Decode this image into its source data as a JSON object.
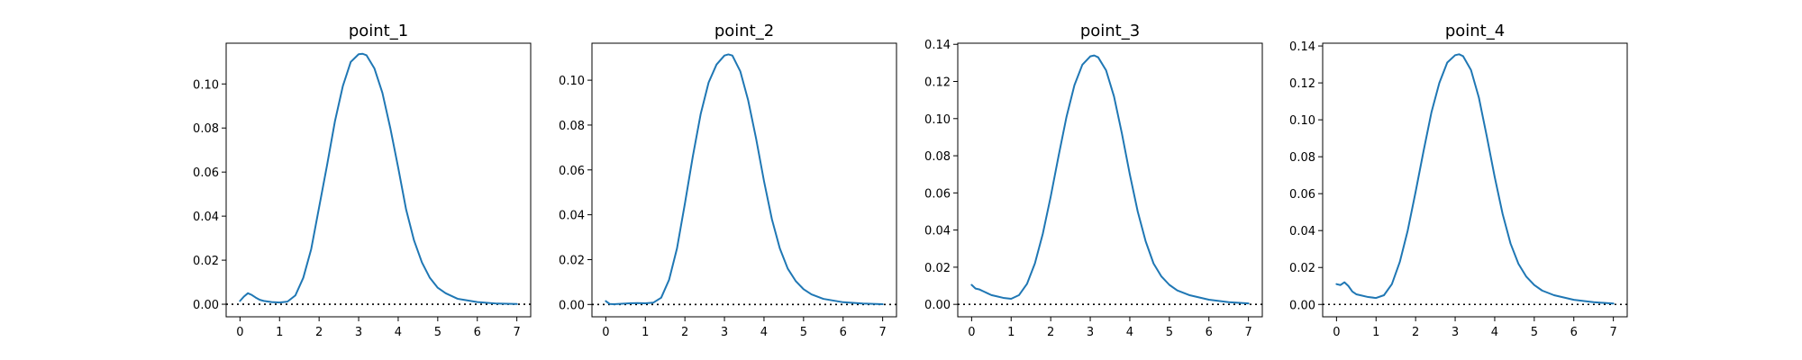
{
  "colors": {
    "series": "#1f77b4",
    "axes": "#000000",
    "background": "#ffffff"
  },
  "chart_data": [
    {
      "type": "line",
      "title": "point_1",
      "xlabel": "",
      "ylabel": "",
      "xlim": [
        -0.35,
        7.35
      ],
      "ylim": [
        -0.0057,
        0.1185
      ],
      "xticks": [
        0,
        1,
        2,
        3,
        4,
        5,
        6,
        7
      ],
      "yticks": [
        0.0,
        0.02,
        0.04,
        0.06,
        0.08,
        0.1
      ],
      "ytick_labels": [
        "0.00",
        "0.02",
        "0.04",
        "0.06",
        "0.08",
        "0.10"
      ],
      "reference_line": {
        "y": 0,
        "style": "dotted"
      },
      "grid": false,
      "legend": "none",
      "series": [
        {
          "x": [
            0.0,
            0.1,
            0.2,
            0.3,
            0.4,
            0.5,
            0.6,
            0.8,
            1.0,
            1.2,
            1.4,
            1.6,
            1.8,
            2.0,
            2.2,
            2.4,
            2.6,
            2.8,
            3.0,
            3.1,
            3.2,
            3.4,
            3.6,
            3.8,
            4.0,
            4.2,
            4.4,
            4.6,
            4.8,
            5.0,
            5.2,
            5.5,
            6.0,
            6.5,
            7.0
          ],
          "y": [
            0.0015,
            0.0035,
            0.005,
            0.0042,
            0.003,
            0.002,
            0.0015,
            0.001,
            0.0008,
            0.0012,
            0.004,
            0.012,
            0.025,
            0.044,
            0.063,
            0.083,
            0.099,
            0.11,
            0.1135,
            0.1137,
            0.113,
            0.107,
            0.096,
            0.08,
            0.062,
            0.043,
            0.029,
            0.019,
            0.012,
            0.0075,
            0.005,
            0.0025,
            0.001,
            0.0003,
            0.0001
          ]
        }
      ]
    },
    {
      "type": "line",
      "title": "point_2",
      "xlabel": "",
      "ylabel": "",
      "xlim": [
        -0.35,
        7.35
      ],
      "ylim": [
        -0.0055,
        0.1165
      ],
      "xticks": [
        0,
        1,
        2,
        3,
        4,
        5,
        6,
        7
      ],
      "yticks": [
        0.0,
        0.02,
        0.04,
        0.06,
        0.08,
        0.1
      ],
      "ytick_labels": [
        "0.00",
        "0.02",
        "0.04",
        "0.06",
        "0.08",
        "0.10"
      ],
      "reference_line": {
        "y": 0,
        "style": "dotted"
      },
      "grid": false,
      "legend": "none",
      "series": [
        {
          "x": [
            0.0,
            0.1,
            0.2,
            0.4,
            0.6,
            0.8,
            1.0,
            1.2,
            1.4,
            1.6,
            1.8,
            2.0,
            2.2,
            2.4,
            2.6,
            2.8,
            3.0,
            3.1,
            3.2,
            3.4,
            3.6,
            3.8,
            4.0,
            4.2,
            4.4,
            4.6,
            4.8,
            5.0,
            5.2,
            5.5,
            6.0,
            6.5,
            7.0
          ],
          "y": [
            0.0015,
            0.0002,
            0.0001,
            0.0003,
            0.0005,
            0.0006,
            0.0005,
            0.0008,
            0.003,
            0.011,
            0.025,
            0.045,
            0.066,
            0.085,
            0.099,
            0.107,
            0.111,
            0.1115,
            0.111,
            0.104,
            0.091,
            0.074,
            0.055,
            0.038,
            0.025,
            0.016,
            0.0105,
            0.0068,
            0.0045,
            0.0025,
            0.001,
            0.0004,
            0.0001
          ]
        }
      ]
    },
    {
      "type": "line",
      "title": "point_3",
      "xlabel": "",
      "ylabel": "",
      "xlim": [
        -0.35,
        7.35
      ],
      "ylim": [
        -0.0067,
        0.1406
      ],
      "xticks": [
        0,
        1,
        2,
        3,
        4,
        5,
        6,
        7
      ],
      "yticks": [
        0.0,
        0.02,
        0.04,
        0.06,
        0.08,
        0.1,
        0.12,
        0.14
      ],
      "ytick_labels": [
        "0.00",
        "0.02",
        "0.04",
        "0.06",
        "0.08",
        "0.10",
        "0.12",
        "0.14"
      ],
      "reference_line": {
        "y": 0,
        "style": "dotted"
      },
      "grid": false,
      "legend": "none",
      "series": [
        {
          "x": [
            0.0,
            0.1,
            0.2,
            0.3,
            0.4,
            0.5,
            0.6,
            0.8,
            1.0,
            1.2,
            1.4,
            1.6,
            1.8,
            2.0,
            2.2,
            2.4,
            2.6,
            2.8,
            3.0,
            3.1,
            3.2,
            3.4,
            3.6,
            3.8,
            4.0,
            4.2,
            4.4,
            4.6,
            4.8,
            5.0,
            5.2,
            5.5,
            6.0,
            6.5,
            7.0
          ],
          "y": [
            0.0105,
            0.0085,
            0.008,
            0.007,
            0.006,
            0.005,
            0.0045,
            0.0035,
            0.003,
            0.005,
            0.011,
            0.022,
            0.038,
            0.058,
            0.08,
            0.101,
            0.118,
            0.129,
            0.1335,
            0.134,
            0.133,
            0.126,
            0.112,
            0.092,
            0.07,
            0.05,
            0.034,
            0.022,
            0.015,
            0.0105,
            0.0075,
            0.005,
            0.0025,
            0.0012,
            0.0005
          ]
        }
      ]
    },
    {
      "type": "line",
      "title": "point_4",
      "xlabel": "",
      "ylabel": "",
      "xlim": [
        -0.35,
        7.35
      ],
      "ylim": [
        -0.0067,
        0.1415
      ],
      "xticks": [
        0,
        1,
        2,
        3,
        4,
        5,
        6,
        7
      ],
      "yticks": [
        0.0,
        0.02,
        0.04,
        0.06,
        0.08,
        0.1,
        0.12,
        0.14
      ],
      "ytick_labels": [
        "0.00",
        "0.02",
        "0.04",
        "0.06",
        "0.08",
        "0.10",
        "0.12",
        "0.14"
      ],
      "reference_line": {
        "y": 0,
        "style": "dotted"
      },
      "grid": false,
      "legend": "none",
      "series": [
        {
          "x": [
            0.0,
            0.1,
            0.2,
            0.3,
            0.4,
            0.5,
            0.6,
            0.8,
            1.0,
            1.2,
            1.4,
            1.6,
            1.8,
            2.0,
            2.2,
            2.4,
            2.6,
            2.8,
            3.0,
            3.1,
            3.2,
            3.4,
            3.6,
            3.8,
            4.0,
            4.2,
            4.4,
            4.6,
            4.8,
            5.0,
            5.2,
            5.5,
            6.0,
            6.5,
            7.0
          ],
          "y": [
            0.011,
            0.0105,
            0.012,
            0.01,
            0.007,
            0.0055,
            0.005,
            0.004,
            0.0035,
            0.005,
            0.011,
            0.023,
            0.04,
            0.061,
            0.083,
            0.104,
            0.12,
            0.131,
            0.135,
            0.1355,
            0.1345,
            0.127,
            0.112,
            0.091,
            0.069,
            0.049,
            0.033,
            0.022,
            0.015,
            0.0105,
            0.0075,
            0.005,
            0.0025,
            0.0012,
            0.0005
          ]
        }
      ]
    }
  ]
}
